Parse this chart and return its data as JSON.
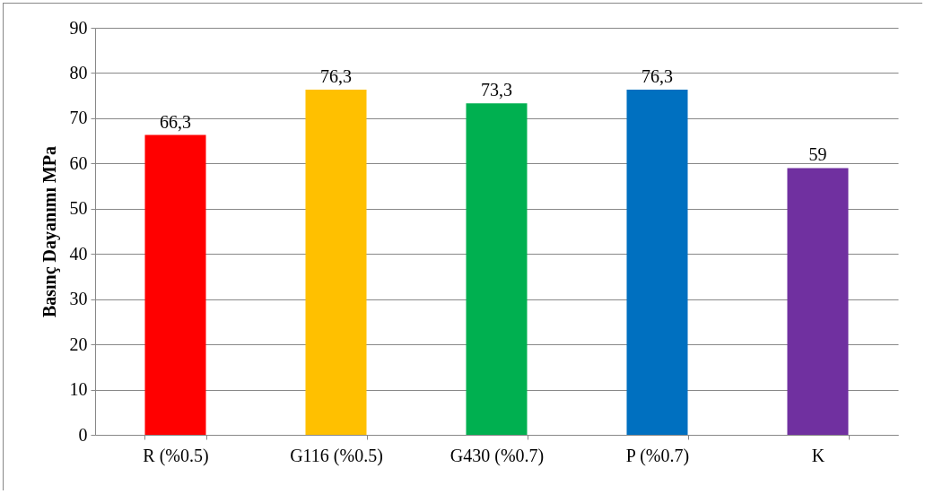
{
  "chart_data": {
    "type": "bar",
    "ylabel": "Basınç Dayanımı MPa",
    "categories": [
      "R (%0.5)",
      "G116 (%0.5)",
      "G430 (%0.7)",
      "P (%0.7)",
      "K"
    ],
    "values": [
      66.3,
      76.3,
      73.3,
      76.3,
      59
    ],
    "colors": [
      "#ff0000",
      "#ffc000",
      "#00b050",
      "#0070c0",
      "#7030a0"
    ],
    "value_labels": [
      "66,3",
      "76,3",
      "73,3",
      "76,3",
      "59"
    ],
    "ylim": [
      0,
      90
    ],
    "yticks": [
      0,
      10,
      20,
      30,
      40,
      50,
      60,
      70,
      80,
      90
    ],
    "grid": "y"
  }
}
